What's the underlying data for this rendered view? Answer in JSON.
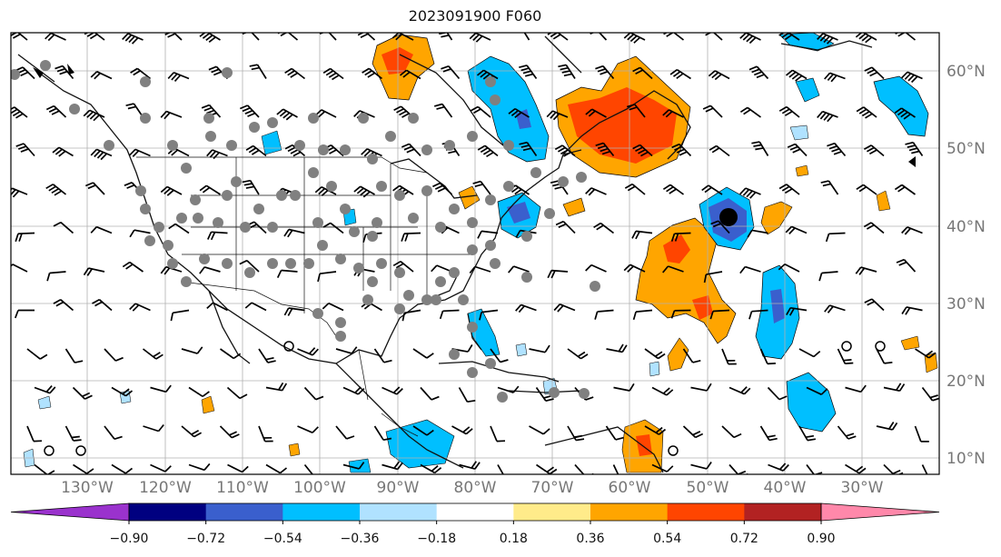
{
  "title": "2023091900 F060",
  "map": {
    "lon_ticks": [
      "130°W",
      "120°W",
      "110°W",
      "100°W",
      "90°W",
      "80°W",
      "70°W",
      "60°W",
      "50°W",
      "40°W",
      "30°W"
    ],
    "lat_ticks": [
      "60°N",
      "50°N",
      "40°N",
      "30°N",
      "20°N",
      "10°N"
    ],
    "extent": {
      "lon": [
        -135,
        -15
      ],
      "lat": [
        8,
        65
      ]
    },
    "grid": true
  },
  "colorbar": {
    "ticks": [
      "−0.90",
      "−0.72",
      "−0.54",
      "−0.36",
      "−0.18",
      "0.18",
      "0.36",
      "0.54",
      "0.72",
      "0.90"
    ],
    "colors": [
      "#9a32cd",
      "#000080",
      "#3a5fcd",
      "#00bfff",
      "#b0e2ff",
      "#ffffff",
      "#ffeb8a",
      "#ffa500",
      "#ff4500",
      "#b22222",
      "#ff88aa"
    ]
  }
}
